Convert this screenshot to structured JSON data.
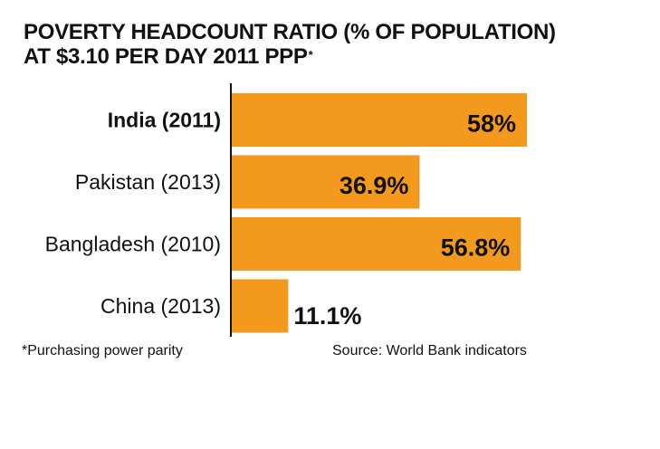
{
  "title_line1": "POVERTY HEADCOUNT RATIO (% OF POPULATION)",
  "title_line2": "AT $3.10 PER DAY 2011 PPP",
  "title_mark": "*",
  "footnote": "*Purchasing power parity",
  "source": "Source: World Bank indicators",
  "colors": {
    "bar": "#F3991E",
    "text": "#111111",
    "axis": "#111111"
  },
  "chart_data": {
    "type": "bar",
    "orientation": "horizontal",
    "categories": [
      "India (2011)",
      "Pakistan (2013)",
      "Bangladesh (2010)",
      "China (2013)"
    ],
    "values": [
      58,
      36.9,
      56.8,
      11.1
    ],
    "value_labels": [
      "58%",
      "36.9%",
      "56.8%",
      "11.1%"
    ],
    "highlighted_category": "India (2011)",
    "unit": "%",
    "title": "POVERTY HEADCOUNT RATIO (% OF POPULATION) AT $3.10 PER DAY 2011 PPP*",
    "xlim": [
      0,
      58
    ],
    "grid": false,
    "legend": "none"
  }
}
